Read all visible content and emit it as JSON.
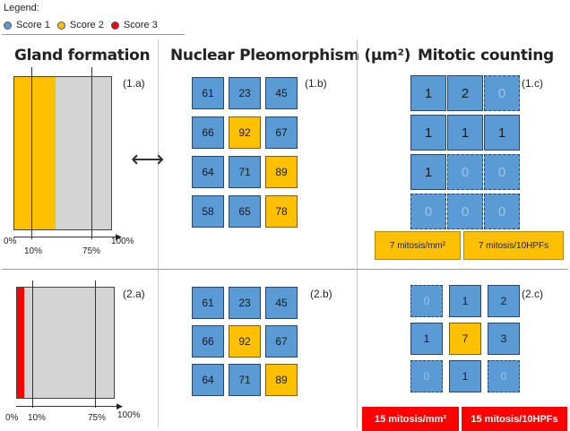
{
  "legend": {
    "title": "Legend:",
    "items": [
      {
        "label": "Score 1",
        "color": "#5b9bd5"
      },
      {
        "label": "Score 2",
        "color": "#ffc000"
      },
      {
        "label": "Score 3",
        "color": "#ff0000"
      }
    ]
  },
  "titles": {
    "gland": "Gland formation",
    "nuclear": "Nuclear Pleomorphism (µm²)",
    "mitotic": "Mitotic counting"
  },
  "tags": {
    "a1": "(1.a)",
    "b1": "(1.b)",
    "c1": "(1.c)",
    "a2": "(2.a)",
    "b2": "(2.b)",
    "c2": "(2.c)"
  },
  "gland1": {
    "fill_percent": 43,
    "fill_color": "#ffc000",
    "axis": {
      "start": "0%",
      "t10": "10%",
      "t75": "75%",
      "end": "100%"
    }
  },
  "gland2": {
    "fill_percent": 7,
    "fill_color": "#ff0000",
    "axis": {
      "start": "0%",
      "t10": "10%",
      "t75": "75%",
      "end": "100%"
    }
  },
  "nuclear1": [
    [
      {
        "v": "61",
        "s": 1
      },
      {
        "v": "23",
        "s": 1
      },
      {
        "v": "45",
        "s": 1
      }
    ],
    [
      {
        "v": "66",
        "s": 1
      },
      {
        "v": "92",
        "s": 2
      },
      {
        "v": "67",
        "s": 1
      }
    ],
    [
      {
        "v": "64",
        "s": 1
      },
      {
        "v": "71",
        "s": 1
      },
      {
        "v": "89",
        "s": 2
      }
    ],
    [
      {
        "v": "58",
        "s": 1
      },
      {
        "v": "65",
        "s": 1
      },
      {
        "v": "78",
        "s": 2
      }
    ]
  ],
  "nuclear2": [
    [
      {
        "v": "61",
        "s": 1
      },
      {
        "v": "23",
        "s": 1
      },
      {
        "v": "45",
        "s": 1
      }
    ],
    [
      {
        "v": "66",
        "s": 1
      },
      {
        "v": "92",
        "s": 2
      },
      {
        "v": "67",
        "s": 1
      }
    ],
    [
      {
        "v": "64",
        "s": 1
      },
      {
        "v": "71",
        "s": 1
      },
      {
        "v": "89",
        "s": 2
      }
    ]
  ],
  "mitotic1": [
    [
      {
        "v": "1",
        "d": false
      },
      {
        "v": "2",
        "d": false
      },
      {
        "v": "0",
        "d": true
      }
    ],
    [
      {
        "v": "1",
        "d": false
      },
      {
        "v": "1",
        "d": false
      },
      {
        "v": "1",
        "d": false
      }
    ],
    [
      {
        "v": "1",
        "d": false
      },
      {
        "v": "0",
        "d": true
      },
      {
        "v": "0",
        "d": true
      }
    ],
    [
      {
        "v": "0",
        "d": true
      },
      {
        "v": "0",
        "d": true
      },
      {
        "v": "0",
        "d": true
      }
    ]
  ],
  "mitotic2": [
    [
      {
        "v": "0",
        "d": true,
        "s": 1
      },
      {
        "v": "1",
        "d": false,
        "s": 1
      },
      {
        "v": "2",
        "d": false,
        "s": 1
      }
    ],
    [
      {
        "v": "1",
        "d": false,
        "s": 1
      },
      {
        "v": "7",
        "d": false,
        "s": 2
      },
      {
        "v": "3",
        "d": false,
        "s": 1
      }
    ],
    [
      {
        "v": "0",
        "d": true,
        "s": 1
      },
      {
        "v": "1",
        "d": false,
        "s": 1
      },
      {
        "v": "0",
        "d": true,
        "s": 1
      }
    ]
  ],
  "footer1": {
    "left": "7 mitosis/mm²",
    "right": "7 mitosis/10HPFs"
  },
  "footer2": {
    "left": "15 mitosis/mm²",
    "right": "15 mitosis/10HPFs"
  },
  "arrow": "⟷"
}
